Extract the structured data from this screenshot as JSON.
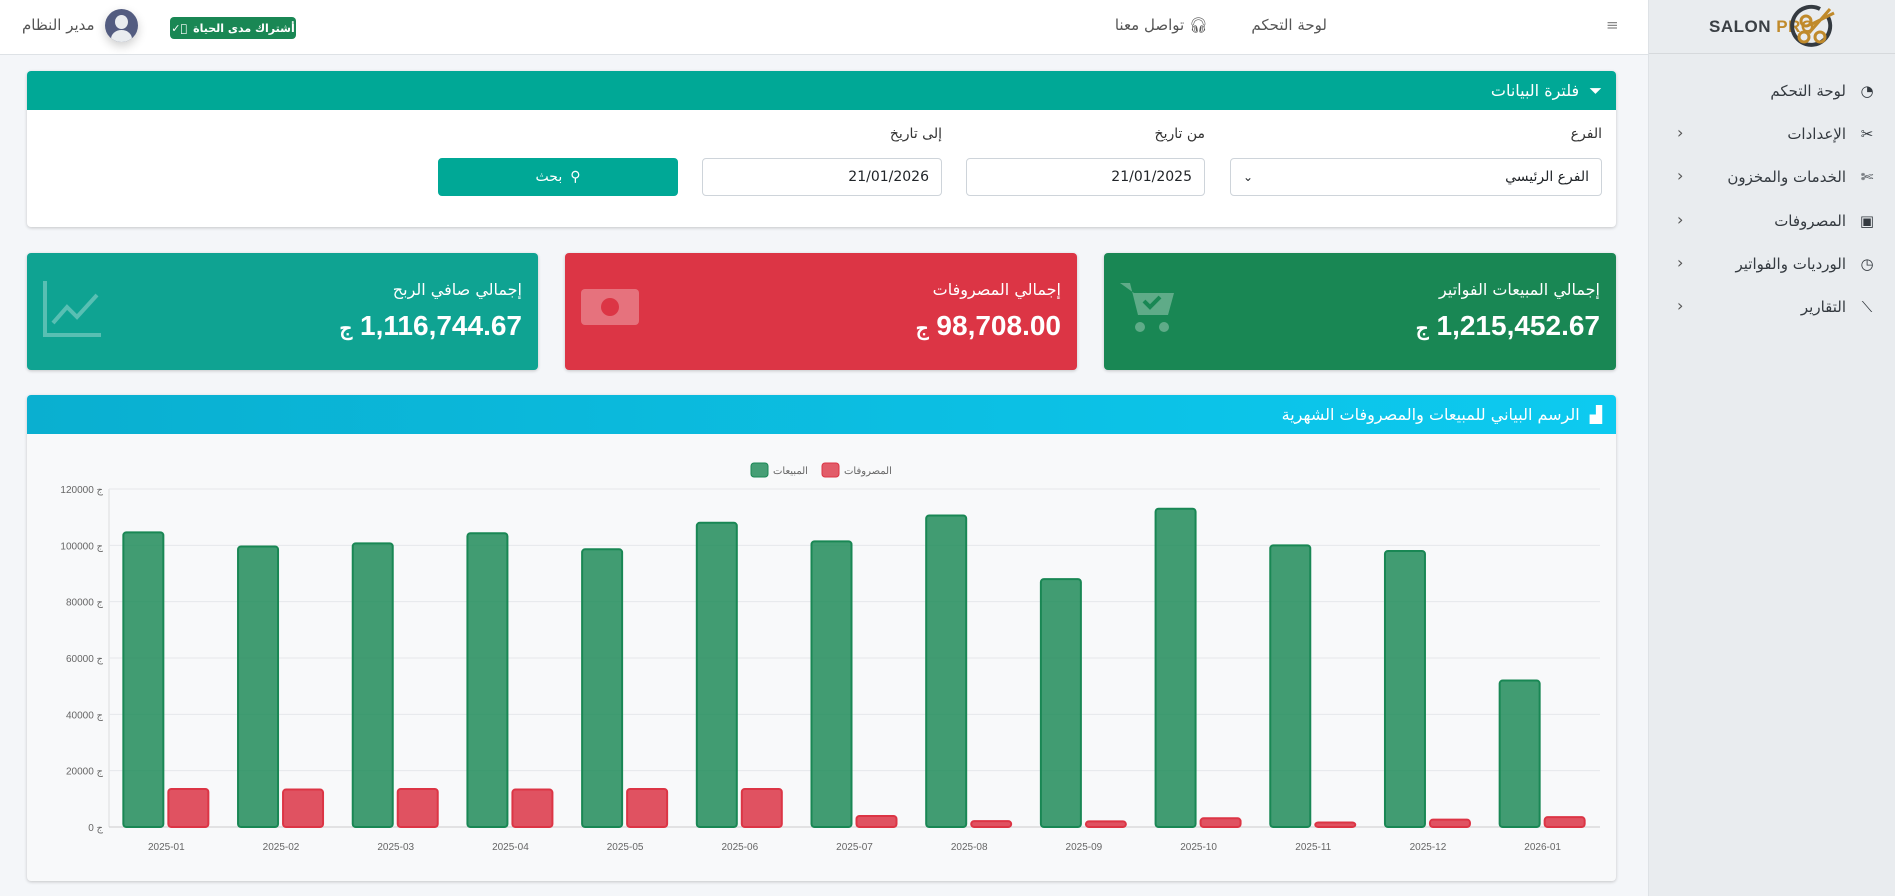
{
  "brand": {
    "logo_text_dark": "SALON",
    "logo_text_gold": "PRO"
  },
  "header": {
    "menu_icon": "hamburger-icon",
    "dashboard": "لوحة التحكم",
    "contact": "تواصل معنا",
    "badge": "أشتراك مدى الحياة",
    "user": "مدير النظام"
  },
  "sidebar": {
    "items": [
      {
        "label": "لوحة التحكم",
        "icon": "gauge-icon"
      },
      {
        "label": "الإعدادات",
        "icon": "tools-icon"
      },
      {
        "label": "الخدمات والمخزون",
        "icon": "scissors-icon"
      },
      {
        "label": "المصروفات",
        "icon": "cash-icon"
      },
      {
        "label": "الورديات والفواتير",
        "icon": "clock-icon"
      },
      {
        "label": "التقارير",
        "icon": "chart-line-icon"
      }
    ]
  },
  "filter": {
    "title": "فلترة البيانات",
    "branch_label": "الفرع",
    "branch_value": "الفرع الرئيسي",
    "from_label": "من تاريخ",
    "from_value": "21/01/2025",
    "to_label": "إلى تاريخ",
    "to_value": "21/01/2026",
    "search": "بحث"
  },
  "stats": [
    {
      "title": "إجمالي المبيعات الفواتير",
      "value": "1,215,452.67",
      "currency": "ج",
      "color": "#198754"
    },
    {
      "title": "إجمالي المصروفات",
      "value": "98,708.00",
      "currency": "ج",
      "color": "#dc3545"
    },
    {
      "title": "إجمالي صافي الربح",
      "value": "1,116,744.67",
      "currency": "ج",
      "color": "#0fa392"
    }
  ],
  "chart_title": "الرسم البياني للمبيعات والمصروفات الشهرية",
  "chart_data": {
    "type": "bar",
    "categories": [
      "2025-01",
      "2025-02",
      "2025-03",
      "2025-04",
      "2025-05",
      "2025-06",
      "2025-07",
      "2025-08",
      "2025-09",
      "2025-10",
      "2025-11",
      "2025-12",
      "2026-01"
    ],
    "series": [
      {
        "name": "المبيعات",
        "color": "#198754",
        "values": [
          104600,
          99600,
          100700,
          104300,
          98600,
          108000,
          101400,
          110600,
          88000,
          113000,
          100000,
          98000,
          52000
        ]
      },
      {
        "name": "المصروفات",
        "color": "#dc3545",
        "values": [
          13500,
          13300,
          13500,
          13300,
          13500,
          13500,
          3900,
          2100,
          2000,
          3100,
          1600,
          2600,
          3500
        ]
      }
    ],
    "yticks": [
      0,
      20000,
      40000,
      60000,
      80000,
      100000,
      120000
    ],
    "ylim": [
      0,
      120000
    ],
    "tick_prefix": "ج",
    "grid": true,
    "legend": "top-center"
  }
}
